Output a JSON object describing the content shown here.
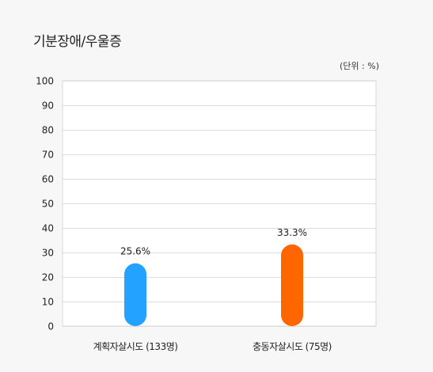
{
  "chart_data": {
    "type": "bar",
    "title": "기분장애/우울증",
    "unit_note": "(단위 : %)",
    "categories": [
      "계획자살시도 (133명)",
      "충동자살시도 (75명)"
    ],
    "values": [
      25.6,
      33.3
    ],
    "value_labels": [
      "25.6%",
      "33.3%"
    ],
    "colors": [
      "#23a3ff",
      "#ff6600"
    ],
    "ylim": [
      0,
      100
    ],
    "yticks": [
      0,
      10,
      20,
      30,
      40,
      50,
      60,
      70,
      80,
      90,
      100
    ],
    "grid": true,
    "xlabel": "",
    "ylabel": ""
  }
}
